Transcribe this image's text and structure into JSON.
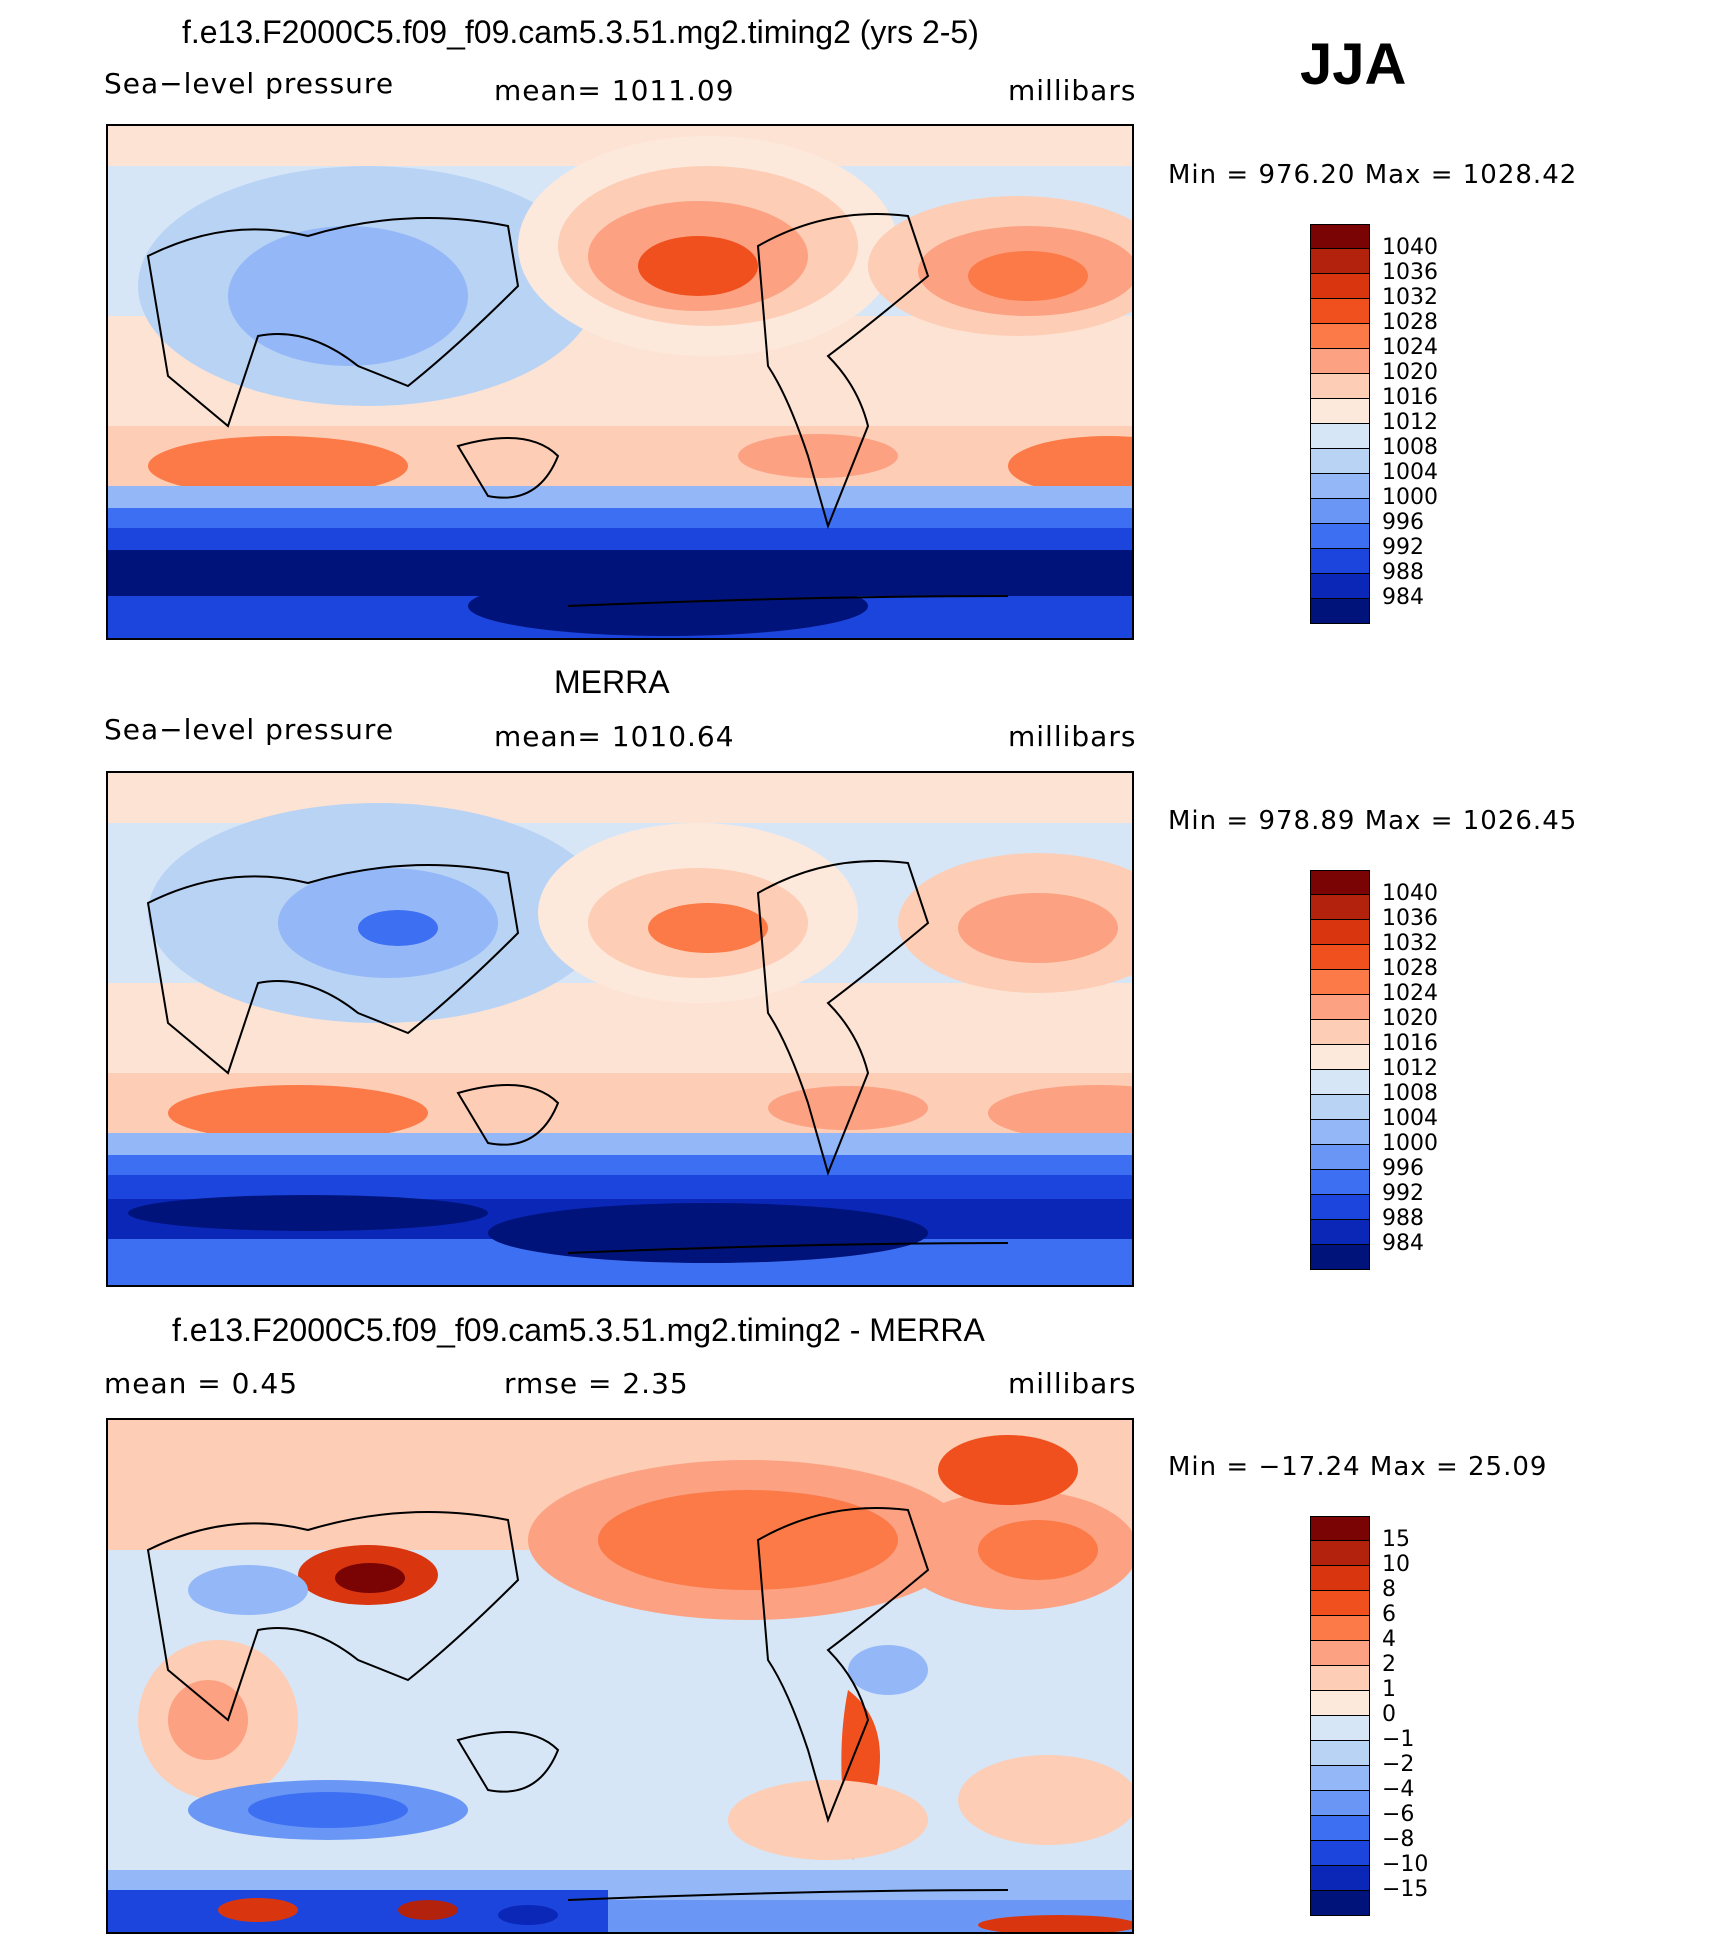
{
  "season": "JJA",
  "panels": [
    {
      "title": "f.e13.F2000C5.f09_f09.cam5.3.51.mg2.timing2 (yrs 2-5)",
      "left_label": "Sea−level pressure",
      "center_label": "mean=  1011.09",
      "units": "millibars",
      "minmax": "Min  =  976.20  Max  =  1028.42",
      "colorbar": {
        "levels": [
          "1040",
          "1036",
          "1032",
          "1028",
          "1024",
          "1020",
          "1016",
          "1012",
          "1008",
          "1004",
          "1000",
          "996",
          "992",
          "988",
          "984"
        ],
        "colors": [
          "#7a0403",
          "#b3220d",
          "#d9360f",
          "#f0501e",
          "#fb7a47",
          "#fca182",
          "#fdcdb5",
          "#fde9dc",
          "#d6e6f7",
          "#b9d3f5",
          "#94b8f7",
          "#6a97f5",
          "#3d6ff2",
          "#1c45de",
          "#0a27b8",
          "#00137a"
        ]
      }
    },
    {
      "title": "MERRA",
      "left_label": "Sea−level pressure",
      "center_label": "mean=  1010.64",
      "units": "millibars",
      "minmax": "Min  =  978.89  Max  =  1026.45",
      "colorbar": {
        "levels": [
          "1040",
          "1036",
          "1032",
          "1028",
          "1024",
          "1020",
          "1016",
          "1012",
          "1008",
          "1004",
          "1000",
          "996",
          "992",
          "988",
          "984"
        ],
        "colors": [
          "#7a0403",
          "#b3220d",
          "#d9360f",
          "#f0501e",
          "#fb7a47",
          "#fca182",
          "#fdcdb5",
          "#fde9dc",
          "#d6e6f7",
          "#b9d3f5",
          "#94b8f7",
          "#6a97f5",
          "#3d6ff2",
          "#1c45de",
          "#0a27b8",
          "#00137a"
        ]
      }
    },
    {
      "title": "f.e13.F2000C5.f09_f09.cam5.3.51.mg2.timing2 - MERRA",
      "left_label": "mean  =      0.45",
      "center_label": "rmse  =      2.35",
      "units": "millibars",
      "minmax": "Min  =  −17.24  Max  =    25.09",
      "colorbar": {
        "levels": [
          "15",
          "10",
          "8",
          "6",
          "4",
          "2",
          "1",
          "0",
          "−1",
          "−2",
          "−4",
          "−6",
          "−8",
          "−10",
          "−15"
        ],
        "colors": [
          "#7a0403",
          "#b3220d",
          "#d9360f",
          "#f0501e",
          "#fb7a47",
          "#fca182",
          "#fdcdb5",
          "#fde9dc",
          "#d6e6f7",
          "#b9d3f5",
          "#94b8f7",
          "#6a97f5",
          "#3d6ff2",
          "#1c45de",
          "#0a27b8",
          "#00137a"
        ]
      }
    }
  ],
  "chart_data": [
    {
      "type": "heatmap",
      "title": "f.e13.F2000C5.f09_f09.cam5.3.51.mg2.timing2 (yrs 2-5)",
      "variable": "Sea−level pressure",
      "units": "millibars",
      "mean": 1011.09,
      "min": 976.2,
      "max": 1028.42,
      "contour_levels": [
        984,
        988,
        992,
        996,
        1000,
        1004,
        1008,
        1012,
        1016,
        1020,
        1024,
        1028,
        1032,
        1036,
        1040
      ]
    },
    {
      "type": "heatmap",
      "title": "MERRA",
      "variable": "Sea−level pressure",
      "units": "millibars",
      "mean": 1010.64,
      "min": 978.89,
      "max": 1026.45,
      "contour_levels": [
        984,
        988,
        992,
        996,
        1000,
        1004,
        1008,
        1012,
        1016,
        1020,
        1024,
        1028,
        1032,
        1036,
        1040
      ]
    },
    {
      "type": "heatmap",
      "title": "f.e13.F2000C5.f09_f09.cam5.3.51.mg2.timing2 - MERRA",
      "units": "millibars",
      "mean": 0.45,
      "rmse": 2.35,
      "min": -17.24,
      "max": 25.09,
      "contour_levels": [
        -15,
        -10,
        -8,
        -6,
        -4,
        -2,
        -1,
        0,
        1,
        2,
        4,
        6,
        8,
        10,
        15
      ]
    }
  ]
}
